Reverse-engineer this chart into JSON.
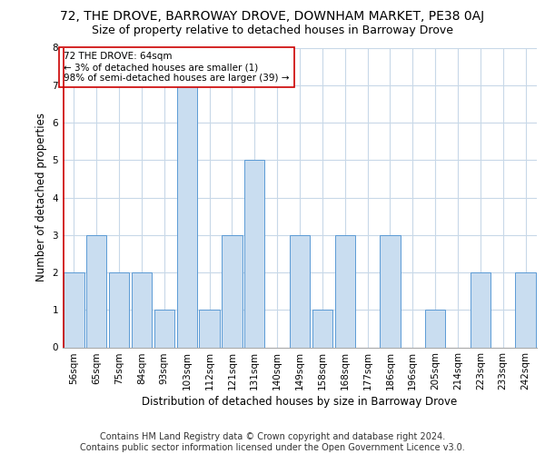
{
  "title": "72, THE DROVE, BARROWAY DROVE, DOWNHAM MARKET, PE38 0AJ",
  "subtitle": "Size of property relative to detached houses in Barroway Drove",
  "xlabel": "Distribution of detached houses by size in Barroway Drove",
  "ylabel": "Number of detached properties",
  "footer_line1": "Contains HM Land Registry data © Crown copyright and database right 2024.",
  "footer_line2": "Contains public sector information licensed under the Open Government Licence v3.0.",
  "annotation_line1": "72 THE DROVE: 64sqm",
  "annotation_line2": "← 3% of detached houses are smaller (1)",
  "annotation_line3": "98% of semi-detached houses are larger (39) →",
  "bar_color": "#c9ddf0",
  "bar_edge_color": "#5b9bd5",
  "annotation_box_color": "#ffffff",
  "annotation_box_edge": "#cc0000",
  "vline_color": "#cc0000",
  "categories": [
    "56sqm",
    "65sqm",
    "75sqm",
    "84sqm",
    "93sqm",
    "103sqm",
    "112sqm",
    "121sqm",
    "131sqm",
    "140sqm",
    "149sqm",
    "158sqm",
    "168sqm",
    "177sqm",
    "186sqm",
    "196sqm",
    "205sqm",
    "214sqm",
    "223sqm",
    "233sqm",
    "242sqm"
  ],
  "values": [
    2,
    3,
    2,
    2,
    1,
    7,
    1,
    3,
    5,
    0,
    3,
    1,
    3,
    0,
    3,
    0,
    1,
    0,
    2,
    0,
    2
  ],
  "ylim": [
    0,
    8
  ],
  "yticks": [
    0,
    1,
    2,
    3,
    4,
    5,
    6,
    7,
    8
  ],
  "vline_x_index": 0,
  "bg_color": "#ffffff",
  "grid_color": "#c8d8e8",
  "title_fontsize": 10,
  "subtitle_fontsize": 9,
  "axis_label_fontsize": 8.5,
  "tick_fontsize": 7.5,
  "annotation_fontsize": 7.5,
  "footer_fontsize": 7
}
